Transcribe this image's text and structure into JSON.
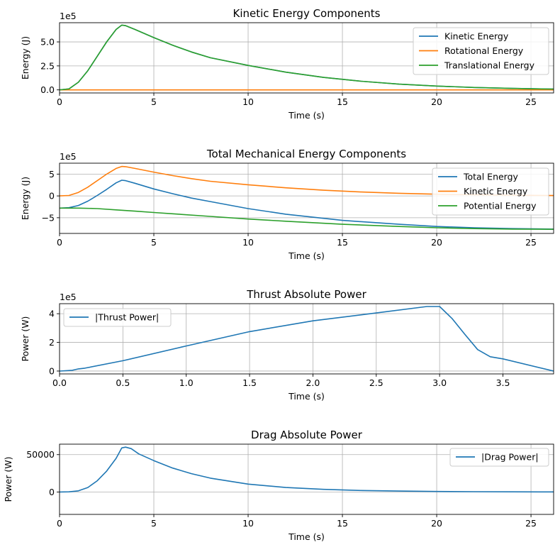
{
  "colors": {
    "blue": "#1f77b4",
    "orange": "#ff7f0e",
    "green": "#2ca02c",
    "grid": "#b0b0b0"
  },
  "chart_data": [
    {
      "type": "line",
      "title": "Kinetic Energy Components",
      "xlabel": "Time (s)",
      "ylabel": "Energy (J)",
      "offset_text": "1e5",
      "xlim": [
        0,
        26.2
      ],
      "ylim": [
        -0.32,
        7.0
      ],
      "y_unit_multiplier": 100000,
      "xticks": [
        0,
        5,
        10,
        15,
        20,
        25
      ],
      "xtick_labels": [
        "0",
        "5",
        "10",
        "15",
        "20",
        "25"
      ],
      "yticks": [
        0,
        2.5,
        5.0
      ],
      "ytick_labels": [
        "0.0",
        "2.5",
        "5.0"
      ],
      "grid": true,
      "legend": "upper-right",
      "series": [
        {
          "name": "Kinetic Energy",
          "color": "blue",
          "x": [
            0,
            0.5,
            1,
            1.5,
            2,
            2.5,
            3,
            3.3,
            3.5,
            4,
            5,
            6,
            7,
            8,
            10,
            12,
            14,
            16,
            18,
            20,
            22,
            24,
            26.2
          ],
          "y": [
            0,
            0.1,
            0.8,
            2.0,
            3.5,
            5.0,
            6.3,
            6.75,
            6.7,
            6.3,
            5.45,
            4.65,
            3.95,
            3.35,
            2.55,
            1.85,
            1.3,
            0.9,
            0.6,
            0.4,
            0.25,
            0.15,
            0.08
          ]
        },
        {
          "name": "Rotational Energy",
          "color": "orange",
          "x": [
            0,
            26.2
          ],
          "y": [
            0,
            0
          ]
        },
        {
          "name": "Translational Energy",
          "color": "green",
          "x": [
            0,
            0.5,
            1,
            1.5,
            2,
            2.5,
            3,
            3.3,
            3.5,
            4,
            5,
            6,
            7,
            8,
            10,
            12,
            14,
            16,
            18,
            20,
            22,
            24,
            26.2
          ],
          "y": [
            0,
            0.1,
            0.8,
            2.0,
            3.5,
            5.0,
            6.3,
            6.75,
            6.7,
            6.3,
            5.45,
            4.65,
            3.95,
            3.35,
            2.55,
            1.85,
            1.3,
            0.9,
            0.6,
            0.4,
            0.25,
            0.15,
            0.08
          ]
        }
      ]
    },
    {
      "type": "line",
      "title": "Total Mechanical Energy Components",
      "xlabel": "Time (s)",
      "ylabel": "Energy (J)",
      "offset_text": "1e5",
      "xlim": [
        0,
        26.2
      ],
      "ylim": [
        -8.6,
        7.5
      ],
      "y_unit_multiplier": 100000,
      "xticks": [
        0,
        5,
        10,
        15,
        20,
        25
      ],
      "xtick_labels": [
        "0",
        "5",
        "10",
        "15",
        "20",
        "25"
      ],
      "yticks": [
        -5,
        0,
        5
      ],
      "ytick_labels": [
        "−5",
        "0",
        "5"
      ],
      "grid": true,
      "legend": "upper-right",
      "series": [
        {
          "name": "Total Energy",
          "color": "blue",
          "x": [
            0,
            0.5,
            1,
            1.5,
            2,
            2.5,
            3,
            3.3,
            3.5,
            4,
            5,
            6,
            7,
            8,
            10,
            12,
            15,
            18,
            20,
            22,
            24,
            26.2
          ],
          "y": [
            -2.8,
            -2.7,
            -2.2,
            -1.2,
            0.1,
            1.5,
            3.0,
            3.6,
            3.5,
            2.9,
            1.6,
            0.5,
            -0.5,
            -1.3,
            -2.9,
            -4.2,
            -5.6,
            -6.5,
            -7.0,
            -7.3,
            -7.5,
            -7.6
          ]
        },
        {
          "name": "Kinetic Energy",
          "color": "orange",
          "x": [
            0,
            0.5,
            1,
            1.5,
            2,
            2.5,
            3,
            3.3,
            3.5,
            4,
            5,
            6,
            7,
            8,
            10,
            12,
            14,
            16,
            18,
            20,
            22,
            24,
            26.2
          ],
          "y": [
            0,
            0.1,
            0.8,
            2.0,
            3.5,
            5.0,
            6.3,
            6.75,
            6.7,
            6.3,
            5.45,
            4.65,
            3.95,
            3.35,
            2.55,
            1.85,
            1.3,
            0.9,
            0.6,
            0.4,
            0.25,
            0.15,
            0.08
          ]
        },
        {
          "name": "Potential Energy",
          "color": "green",
          "x": [
            0,
            1,
            2,
            3,
            4,
            5,
            6,
            8,
            10,
            12,
            15,
            18,
            20,
            22,
            24,
            26.2
          ],
          "y": [
            -2.8,
            -2.8,
            -2.9,
            -3.2,
            -3.5,
            -3.8,
            -4.1,
            -4.7,
            -5.3,
            -5.8,
            -6.5,
            -7.0,
            -7.3,
            -7.5,
            -7.6,
            -7.65
          ]
        }
      ]
    },
    {
      "type": "line",
      "title": "Thrust Absolute Power",
      "xlabel": "Time (s)",
      "ylabel": "Power (W)",
      "offset_text": "1e5",
      "xlim": [
        0,
        3.9
      ],
      "ylim": [
        -0.2,
        4.7
      ],
      "y_unit_multiplier": 100000,
      "xticks": [
        0,
        0.5,
        1.0,
        1.5,
        2.0,
        2.5,
        3.0,
        3.5
      ],
      "xtick_labels": [
        "0.0",
        "0.5",
        "1.0",
        "1.5",
        "2.0",
        "2.5",
        "3.0",
        "3.5"
      ],
      "yticks": [
        0,
        2,
        4
      ],
      "ytick_labels": [
        "0",
        "2",
        "4"
      ],
      "grid": true,
      "legend": "upper-left",
      "series": [
        {
          "name": "|Thrust Power|",
          "color": "blue",
          "x": [
            0,
            0.1,
            0.15,
            0.2,
            0.5,
            1.0,
            1.5,
            2.0,
            2.5,
            2.9,
            3.0,
            3.1,
            3.2,
            3.3,
            3.4,
            3.5,
            3.9
          ],
          "y": [
            0,
            0.05,
            0.15,
            0.2,
            0.72,
            1.75,
            2.75,
            3.5,
            4.05,
            4.5,
            4.5,
            3.65,
            2.55,
            1.5,
            1.0,
            0.85,
            0
          ]
        }
      ]
    },
    {
      "type": "line",
      "title": "Drag Absolute Power",
      "xlabel": "Time (s)",
      "ylabel": "Power (W)",
      "offset_text": "",
      "xlim": [
        0,
        26.2
      ],
      "ylim": [
        -30000,
        64000
      ],
      "y_unit_multiplier": 1,
      "xticks": [
        0,
        5,
        10,
        15,
        20,
        25
      ],
      "xtick_labels": [
        "0",
        "5",
        "10",
        "15",
        "20",
        "25"
      ],
      "yticks": [
        0,
        50000
      ],
      "ytick_labels": [
        "0",
        "50000"
      ],
      "grid": true,
      "legend": "upper-right",
      "series": [
        {
          "name": "|Drag Power|",
          "color": "blue",
          "x": [
            0,
            0.5,
            1,
            1.5,
            2,
            2.5,
            3,
            3.3,
            3.5,
            3.8,
            4.2,
            5,
            6,
            7,
            8,
            10,
            12,
            14,
            16,
            18,
            20,
            22,
            24,
            26.2
          ],
          "y": [
            0,
            200,
            1500,
            6000,
            15000,
            28000,
            45000,
            59000,
            60000,
            58000,
            51000,
            42000,
            32000,
            24500,
            18500,
            10500,
            6000,
            3500,
            2000,
            1200,
            700,
            400,
            200,
            100
          ]
        }
      ]
    }
  ]
}
